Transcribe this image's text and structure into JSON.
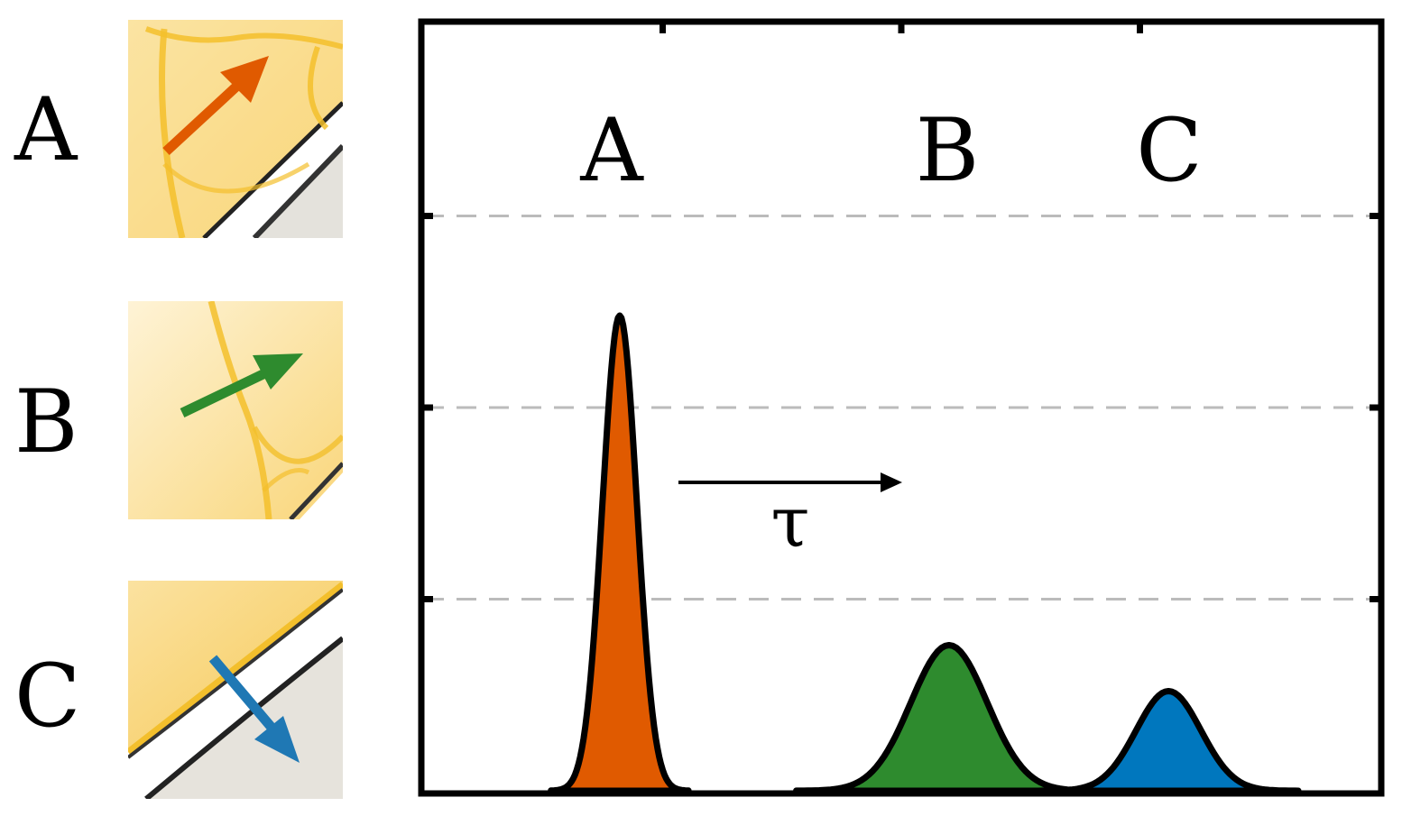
{
  "row_labels": {
    "a": "A",
    "b": "B",
    "c": "C"
  },
  "thumbnails": [
    {
      "label": "A",
      "arrow_color": "#E05A00",
      "arrow_icon": "arrow-up-right-icon"
    },
    {
      "label": "B",
      "arrow_color": "#2E8B2E",
      "arrow_icon": "arrow-right-icon"
    },
    {
      "label": "C",
      "arrow_color": "#1F78B4",
      "arrow_icon": "arrow-down-right-icon"
    }
  ],
  "plot": {
    "peak_labels": [
      "A",
      "B",
      "C"
    ],
    "delay_symbol": "τ",
    "peaks": [
      {
        "label": "A",
        "center": 0.205,
        "height": 0.62,
        "width": 0.018,
        "color": "#E05A00"
      },
      {
        "label": "B",
        "center": 0.55,
        "height": 0.19,
        "width": 0.04,
        "color": "#2E8B2E"
      },
      {
        "label": "C",
        "center": 0.78,
        "height": 0.13,
        "width": 0.034,
        "color": "#0077BE"
      }
    ],
    "gridlines_y": [
      0.25,
      0.5,
      0.75
    ],
    "grid_style": "dashed",
    "grid_color": "#BBBBBB",
    "frame_color": "#000000"
  }
}
